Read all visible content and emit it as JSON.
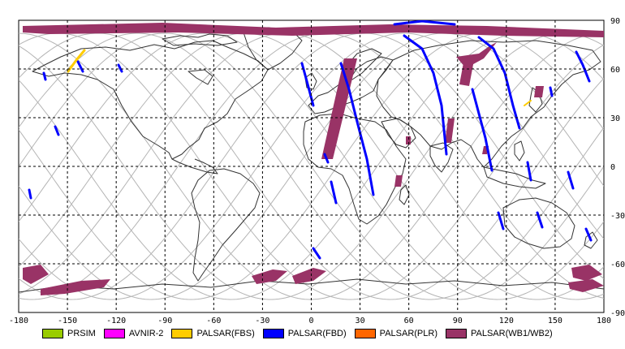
{
  "map": {
    "lon_ticks": [
      "-180",
      "-150",
      "-120",
      "-90",
      "-60",
      "-30",
      "0",
      "30",
      "60",
      "90",
      "120",
      "150",
      "180"
    ],
    "lat_ticks": [
      "90",
      "60",
      "30",
      "0",
      "-30",
      "-60",
      "-90"
    ],
    "extent": {
      "lon": [
        -180,
        180
      ],
      "lat": [
        -90,
        90
      ]
    },
    "grid": "dashed",
    "colors": {
      "background": "#ffffff",
      "coastline": "#333333",
      "orbit_tracks": "#b4b4b4",
      "grid": "#000000"
    }
  },
  "legend": {
    "placement": "bottom",
    "items": [
      {
        "label": "PRSIM",
        "color": "#99cc00"
      },
      {
        "label": "AVNIR-2",
        "color": "#ff00ff"
      },
      {
        "label": "PALSAR(FBS)",
        "color": "#ffcc00"
      },
      {
        "label": "PALSAR(FBD)",
        "color": "#0000ff"
      },
      {
        "label": "PALSAR(PLR)",
        "color": "#ff6600"
      },
      {
        "label": "PALSAR(WB1/WB2)",
        "color": "#993366"
      }
    ]
  }
}
